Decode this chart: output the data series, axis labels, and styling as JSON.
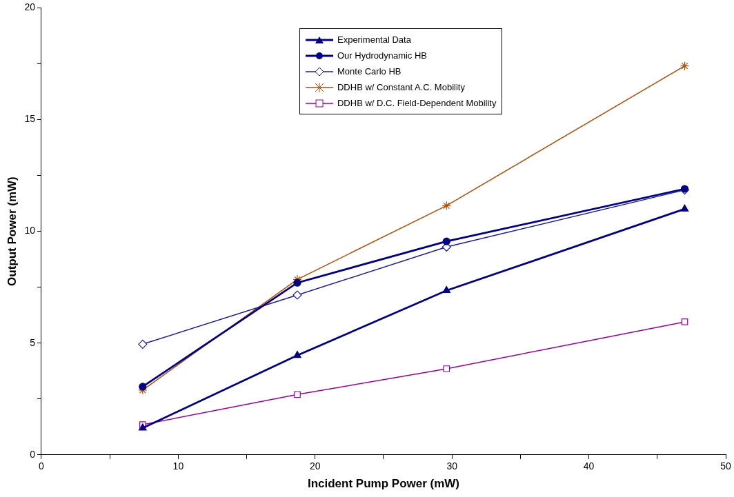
{
  "chart_data": {
    "type": "line",
    "xlabel": "Incident Pump Power (mW)",
    "ylabel": "Output Power (mW)",
    "xlim": [
      0,
      50
    ],
    "xticks": [
      0,
      {
        "value": 5,
        "label": null
      },
      10,
      {
        "value": 15,
        "label": null
      },
      20,
      {
        "value": 25,
        "label": null
      },
      30,
      {
        "value": 35,
        "label": null
      },
      40,
      {
        "value": 45,
        "label": null
      },
      50
    ],
    "ylim": [
      0,
      20
    ],
    "yticks": [
      0,
      {
        "value": 2.5,
        "label": null
      },
      5,
      {
        "value": 7.5,
        "label": null
      },
      10,
      {
        "value": 12.5,
        "label": null
      },
      15,
      {
        "value": 17.5,
        "label": null
      },
      20
    ],
    "x": [
      7.4,
      18.7,
      29.6,
      47.0
    ],
    "grid": false,
    "legend": "top",
    "series": [
      {
        "name": "Experimental Data",
        "color": "#000080",
        "marker": "triangle",
        "values": [
          1.2,
          4.45,
          7.35,
          11.0
        ]
      },
      {
        "name": "Our Hydrodynamic HB",
        "color": "#000080",
        "marker": "circle",
        "values": [
          3.05,
          7.7,
          9.55,
          11.9
        ]
      },
      {
        "name": "Monte Carlo HB",
        "color": "#1a1aa0",
        "marker": "diamond",
        "values": [
          4.95,
          7.15,
          9.3,
          11.85
        ]
      },
      {
        "name": "DDHB w/ Constant A.C. Mobility",
        "color": "#b34a00",
        "marker": "cross",
        "values": [
          2.9,
          7.85,
          11.15,
          17.4
        ]
      },
      {
        "name": "DDHB w/ D.C. Field-Dependent Mobility",
        "color": "#990099",
        "marker": "square",
        "values": [
          1.35,
          2.7,
          3.85,
          5.95
        ]
      }
    ]
  }
}
